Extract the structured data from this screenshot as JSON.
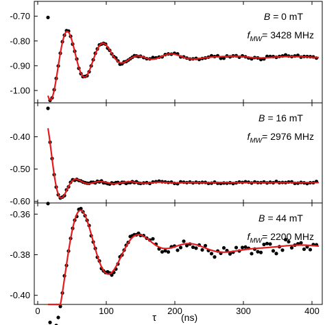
{
  "chart_data": [
    {
      "type": "scatter",
      "annotation": {
        "field_label": "B =",
        "field_value": "0 mT",
        "freq_label": "f",
        "freq_sub": "MW",
        "freq_value": "= 3428 MHz"
      },
      "ylim": [
        -1.05,
        -0.64
      ],
      "ytick_values": [
        -0.7,
        -0.8,
        -0.9,
        -1.0
      ],
      "ytick_labels": [
        "-0.70",
        "-0.80",
        "-0.90",
        "-1.00"
      ],
      "fit": {
        "offset": -0.865,
        "amp": 0.21,
        "tau": 50,
        "period": 51,
        "phase": 2.6,
        "tail_amp": 0.025,
        "tail_tau": 150,
        "tail_period": 90,
        "tail_phase": 0.3
      },
      "outlier": {
        "x": 15,
        "y": -0.705
      },
      "noise": 0.006,
      "colors": {
        "points": "#000000",
        "fit": "#e41a1c"
      }
    },
    {
      "type": "scatter",
      "annotation": {
        "field_label": "B =",
        "field_value": "16 mT",
        "freq_label": "f",
        "freq_sub": "MW",
        "freq_value": "= 2976 MHz"
      },
      "ylim": [
        -0.605,
        -0.295
      ],
      "ytick_values": [
        -0.4,
        -0.5,
        -0.6
      ],
      "ytick_labels": [
        "-0.40",
        "-0.50",
        "-0.60"
      ],
      "fit": {
        "offset": -0.542,
        "amp": 0.18,
        "tau": 18,
        "period": 48,
        "phase": 0.0,
        "tail_amp": 0.02,
        "tail_tau": 60,
        "tail_period": 45,
        "tail_phase": 2.2
      },
      "outlier": {
        "x": 15,
        "y": -0.312
      },
      "noise": 0.004,
      "colors": {
        "points": "#000000",
        "fit": "#e41a1c"
      }
    },
    {
      "type": "scatter",
      "annotation": {
        "field_label": "B =",
        "field_value": "44 mT",
        "freq_label": "f",
        "freq_sub": "MW",
        "freq_value": "= 2200 MHz"
      },
      "ylim": [
        -0.4045,
        -0.3545
      ],
      "ytick_values": [
        -0.36,
        -0.38,
        -0.4
      ],
      "ytick_labels": [
        "-0.36",
        "-0.38",
        "-0.40"
      ],
      "fit": {
        "offset": -0.3765,
        "amp": 0.048,
        "tau": 60,
        "period": 82,
        "phase": 2.4,
        "tail_amp": 0.004,
        "tail_tau": 300,
        "tail_period": 200,
        "tail_phase": 1.0
      },
      "outlier": {
        "x": 15,
        "y": -0.3548
      },
      "noise": 0.0016,
      "colors": {
        "points": "#000000",
        "fit": "#e41a1c"
      }
    }
  ],
  "xaxis": {
    "xlim": [
      -5,
      415
    ],
    "tick_values": [
      0,
      100,
      200,
      300,
      400
    ],
    "tick_labels": [
      "0",
      "100",
      "200",
      "300",
      "400"
    ],
    "label_symbol": "τ",
    "label_unit": "(ns)"
  }
}
